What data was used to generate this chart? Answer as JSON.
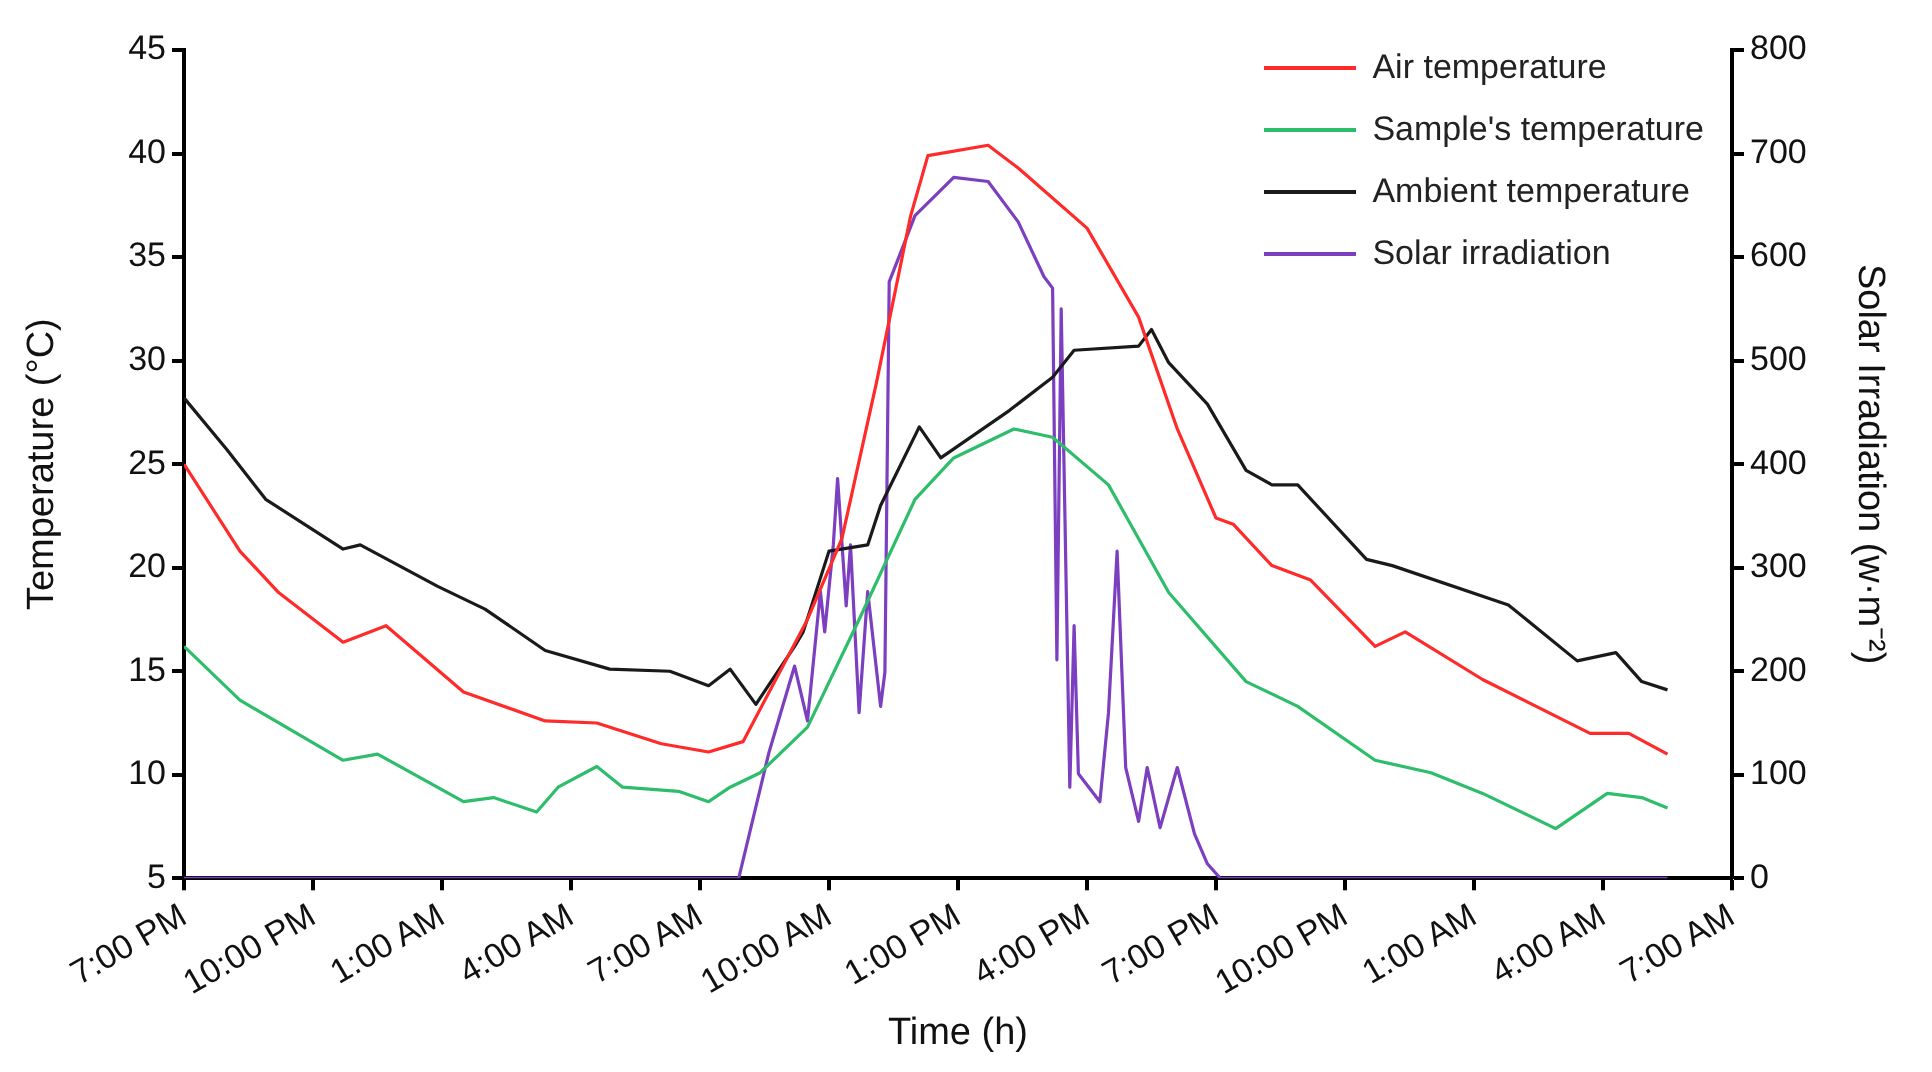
{
  "chart_data": {
    "type": "line",
    "xlabel": "Time (h)",
    "ylabel": "Temperature (°C)",
    "y2label": "Solar Irradiation (w·m⁻²)",
    "xlim": [
      "2000-01-01T19:00",
      "2000-01-03T07:00"
    ],
    "xticks": [
      {
        "value": "2000-01-01T19:00",
        "label": "7:00 PM"
      },
      {
        "value": "2000-01-01T22:00",
        "label": "10:00 PM"
      },
      {
        "value": "2000-01-02T01:00",
        "label": "1:00 AM"
      },
      {
        "value": "2000-01-02T04:00",
        "label": "4:00 AM"
      },
      {
        "value": "2000-01-02T07:00",
        "label": "7:00 AM"
      },
      {
        "value": "2000-01-02T10:00",
        "label": "10:00 AM"
      },
      {
        "value": "2000-01-02T13:00",
        "label": "1:00 PM"
      },
      {
        "value": "2000-01-02T16:00",
        "label": "4:00 PM"
      },
      {
        "value": "2000-01-02T19:00",
        "label": "7:00 PM"
      },
      {
        "value": "2000-01-02T22:00",
        "label": "10:00 PM"
      },
      {
        "value": "2000-01-03T01:00",
        "label": "1:00 AM"
      },
      {
        "value": "2000-01-03T04:00",
        "label": "4:00 AM"
      },
      {
        "value": "2000-01-03T07:00",
        "label": "7:00 AM"
      }
    ],
    "ylim": [
      5,
      45
    ],
    "yticks": [
      5,
      10,
      15,
      20,
      25,
      30,
      35,
      40,
      45
    ],
    "y2lim": [
      0,
      800
    ],
    "y2ticks": [
      0,
      100,
      200,
      300,
      400,
      500,
      600,
      700,
      800
    ],
    "grid": false,
    "legend": "top right",
    "marker": "none",
    "series": [
      {
        "name": "Air temperature",
        "color": "#ff2a2a",
        "x": [
          "2000-01-01T19:00",
          "2000-01-01T20:18",
          "2000-01-01T21:12",
          "2000-01-01T22:42",
          "2000-01-01T23:42",
          "2000-01-02T01:30",
          "2000-01-02T03:24",
          "2000-01-02T04:36",
          "2000-01-02T06:06",
          "2000-01-02T07:12",
          "2000-01-02T08:00",
          "2000-01-02T09:30",
          "2000-01-02T10:18",
          "2000-01-02T11:06",
          "2000-01-02T11:54",
          "2000-01-02T12:18",
          "2000-01-02T13:42",
          "2000-01-02T14:24",
          "2000-01-02T16:00",
          "2000-01-02T17:12",
          "2000-01-02T18:06",
          "2000-01-02T19:00",
          "2000-01-02T19:24",
          "2000-01-02T20:18",
          "2000-01-02T21:12",
          "2000-01-02T22:42",
          "2000-01-02T23:24",
          "2000-01-03T01:12",
          "2000-01-03T03:42",
          "2000-01-03T04:36",
          "2000-01-03T05:30"
        ],
        "values": [
          25.0,
          20.8,
          18.8,
          16.4,
          17.2,
          14.0,
          12.6,
          12.5,
          11.5,
          11.1,
          11.6,
          17.5,
          21.4,
          28.9,
          37.0,
          39.9,
          40.4,
          39.3,
          36.4,
          32.1,
          26.7,
          22.4,
          22.1,
          20.1,
          19.4,
          16.2,
          16.9,
          14.6,
          12.0,
          12.0,
          11.0
        ]
      },
      {
        "name": "Sample's temperature",
        "color": "#2ebd6b",
        "x": [
          "2000-01-01T19:00",
          "2000-01-01T20:18",
          "2000-01-01T22:42",
          "2000-01-01T23:30",
          "2000-01-02T01:30",
          "2000-01-02T02:12",
          "2000-01-02T03:12",
          "2000-01-02T03:42",
          "2000-01-02T04:36",
          "2000-01-02T05:12",
          "2000-01-02T06:30",
          "2000-01-02T07:12",
          "2000-01-02T07:42",
          "2000-01-02T08:24",
          "2000-01-02T09:30",
          "2000-01-02T10:42",
          "2000-01-02T12:00",
          "2000-01-02T12:54",
          "2000-01-02T14:18",
          "2000-01-02T15:12",
          "2000-01-02T16:30",
          "2000-01-02T17:54",
          "2000-01-02T19:42",
          "2000-01-02T20:54",
          "2000-01-02T22:42",
          "2000-01-03T00:00",
          "2000-01-03T01:12",
          "2000-01-03T02:54",
          "2000-01-03T04:06",
          "2000-01-03T04:54",
          "2000-01-03T05:30"
        ],
        "values": [
          16.2,
          13.6,
          10.7,
          11.0,
          8.7,
          8.9,
          8.2,
          9.4,
          10.4,
          9.4,
          9.2,
          8.7,
          9.4,
          10.1,
          12.3,
          17.5,
          23.3,
          25.3,
          26.7,
          26.3,
          24.0,
          18.8,
          14.5,
          13.3,
          10.7,
          10.1,
          9.1,
          7.4,
          9.1,
          8.9,
          8.4
        ]
      },
      {
        "name": "Ambient temperature",
        "color": "#1a1a1a",
        "x": [
          "2000-01-01T19:00",
          "2000-01-01T20:00",
          "2000-01-01T20:54",
          "2000-01-01T22:42",
          "2000-01-01T23:06",
          "2000-01-02T00:54",
          "2000-01-02T02:00",
          "2000-01-02T03:24",
          "2000-01-02T04:54",
          "2000-01-02T06:18",
          "2000-01-02T07:12",
          "2000-01-02T07:42",
          "2000-01-02T08:18",
          "2000-01-02T09:12",
          "2000-01-02T09:24",
          "2000-01-02T10:00",
          "2000-01-02T10:54",
          "2000-01-02T11:12",
          "2000-01-02T12:06",
          "2000-01-02T12:36",
          "2000-01-02T14:12",
          "2000-01-02T15:12",
          "2000-01-02T15:42",
          "2000-01-02T17:12",
          "2000-01-02T17:30",
          "2000-01-02T17:54",
          "2000-01-02T18:48",
          "2000-01-02T19:42",
          "2000-01-02T20:18",
          "2000-01-02T20:54",
          "2000-01-02T22:30",
          "2000-01-02T23:06",
          "2000-01-03T01:48",
          "2000-01-03T03:24",
          "2000-01-03T04:18",
          "2000-01-03T04:54",
          "2000-01-03T05:30"
        ],
        "values": [
          28.2,
          25.7,
          23.3,
          20.9,
          21.1,
          19.1,
          18.0,
          16.0,
          15.1,
          15.0,
          14.3,
          15.1,
          13.4,
          16.2,
          16.9,
          20.8,
          21.1,
          23.0,
          26.8,
          25.3,
          27.6,
          29.2,
          30.5,
          30.7,
          31.5,
          29.9,
          27.9,
          24.7,
          24.0,
          24.0,
          20.4,
          20.1,
          18.2,
          15.5,
          15.9,
          14.5,
          14.1
        ]
      },
      {
        "name": "Solar irradiation",
        "color": "#7b3fbf",
        "axis": "y2",
        "x": [
          "2000-01-01T19:00",
          "2000-01-02T07:54",
          "2000-01-02T08:36",
          "2000-01-02T09:12",
          "2000-01-02T09:30",
          "2000-01-02T09:48",
          "2000-01-02T09:54",
          "2000-01-02T10:06",
          "2000-01-02T10:12",
          "2000-01-02T10:24",
          "2000-01-02T10:30",
          "2000-01-02T10:42",
          "2000-01-02T10:54",
          "2000-01-02T11:12",
          "2000-01-02T11:18",
          "2000-01-02T11:24",
          "2000-01-02T12:00",
          "2000-01-02T12:54",
          "2000-01-02T13:42",
          "2000-01-02T14:24",
          "2000-01-02T15:00",
          "2000-01-02T15:12",
          "2000-01-02T15:18",
          "2000-01-02T15:24",
          "2000-01-02T15:36",
          "2000-01-02T15:42",
          "2000-01-02T15:48",
          "2000-01-02T16:18",
          "2000-01-02T16:30",
          "2000-01-02T16:42",
          "2000-01-02T16:54",
          "2000-01-02T17:12",
          "2000-01-02T17:24",
          "2000-01-02T17:42",
          "2000-01-02T18:06",
          "2000-01-02T18:30",
          "2000-01-02T18:48",
          "2000-01-02T19:06",
          "2000-01-03T05:30"
        ],
        "values": [
          0,
          0,
          121,
          205,
          152,
          277,
          238,
          322,
          386,
          263,
          322,
          160,
          277,
          166,
          199,
          576,
          640,
          677,
          673,
          634,
          581,
          570,
          211,
          550,
          88,
          244,
          101,
          74,
          160,
          316,
          107,
          55,
          107,
          49,
          107,
          43,
          14,
          0,
          0
        ]
      }
    ]
  }
}
